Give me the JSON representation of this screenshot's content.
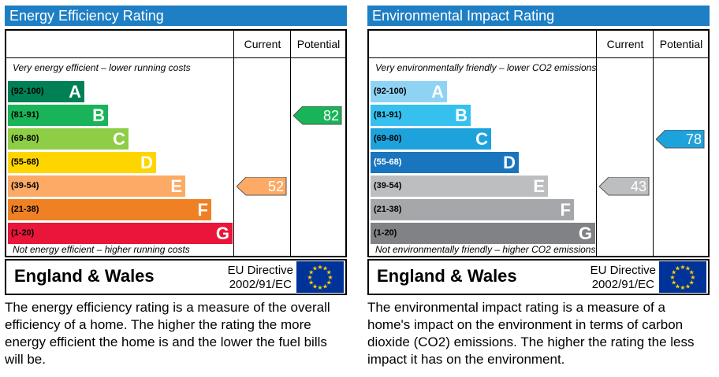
{
  "chart_data": [
    {
      "type": "bar",
      "title": "Energy Efficiency Rating",
      "columns": [
        "Current",
        "Potential"
      ],
      "top_note": "Very energy efficient – lower running costs",
      "bottom_note": "Not energy efficient – higher running costs",
      "bands": [
        {
          "range": "(92-100)",
          "letter": "A",
          "color": "#008054"
        },
        {
          "range": "(81-91)",
          "letter": "B",
          "color": "#19b459"
        },
        {
          "range": "(69-80)",
          "letter": "C",
          "color": "#8dce46"
        },
        {
          "range": "(55-68)",
          "letter": "D",
          "color": "#ffd500"
        },
        {
          "range": "(39-54)",
          "letter": "E",
          "color": "#fcaa65"
        },
        {
          "range": "(21-38)",
          "letter": "F",
          "color": "#ef8023"
        },
        {
          "range": "(1-20)",
          "letter": "G",
          "color": "#e9153b"
        }
      ],
      "current": {
        "value": "52",
        "band": "E",
        "color": "#fcaa65"
      },
      "potential": {
        "value": "82",
        "band": "B",
        "color": "#19b459"
      },
      "region": "England & Wales",
      "directive_line1": "EU Directive",
      "directive_line2": "2002/91/EC",
      "description": "The energy efficiency rating is a measure of the overall efficiency of a home.  The higher the rating the more energy efficient the home is and the lower the fuel bills will be."
    },
    {
      "type": "bar",
      "title": "Environmental Impact Rating",
      "columns": [
        "Current",
        "Potential"
      ],
      "top_note": "Very environmentally friendly – lower CO2 emissions",
      "bottom_note": "Not environmentally friendly – higher CO2 emissions",
      "bands": [
        {
          "range": "(92-100)",
          "letter": "A",
          "color": "#8fd3f4"
        },
        {
          "range": "(81-91)",
          "letter": "B",
          "color": "#35c0ee"
        },
        {
          "range": "(69-80)",
          "letter": "C",
          "color": "#1ea2dc"
        },
        {
          "range": "(55-68)",
          "letter": "D",
          "color": "#1a75bf"
        },
        {
          "range": "(39-54)",
          "letter": "E",
          "color": "#bcbec0"
        },
        {
          "range": "(21-38)",
          "letter": "F",
          "color": "#a5a7aa"
        },
        {
          "range": "(1-20)",
          "letter": "G",
          "color": "#808285"
        }
      ],
      "current": {
        "value": "43",
        "band": "E",
        "color": "#bcbec0"
      },
      "potential": {
        "value": "78",
        "band": "C",
        "color": "#1ea2dc"
      },
      "region": "England & Wales",
      "directive_line1": "EU Directive",
      "directive_line2": "2002/91/EC",
      "description": "The environmental impact rating is a measure of a home's impact on the environment in terms of carbon dioxide (CO2) emissions.  The higher the rating the less impact it has on the environment."
    }
  ],
  "colors": {
    "title_bar": "#1f7fc4",
    "eu_flag": "#003399",
    "eu_star": "#ffcc00"
  }
}
